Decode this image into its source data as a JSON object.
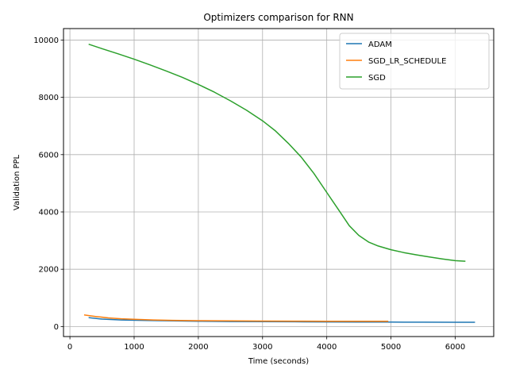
{
  "chart_data": {
    "type": "line",
    "title": "Optimizers comparison for RNN",
    "xlabel": "Time (seconds)",
    "ylabel": "Validation PPL",
    "xlim": [
      -100,
      6600
    ],
    "ylim": [
      -350,
      10400
    ],
    "xticks": [
      0,
      1000,
      2000,
      3000,
      4000,
      5000,
      6000
    ],
    "yticks": [
      0,
      2000,
      4000,
      6000,
      8000,
      10000
    ],
    "grid": true,
    "legend_position": "top-right",
    "series": [
      {
        "name": "ADAM",
        "color": "#1f77b4",
        "x": [
          300,
          500,
          800,
          1200,
          1600,
          2000,
          2500,
          3000,
          3500,
          4000,
          4500,
          5000,
          5500,
          6000,
          6300
        ],
        "y": [
          310,
          260,
          230,
          210,
          195,
          185,
          175,
          170,
          165,
          160,
          158,
          155,
          152,
          150,
          150
        ]
      },
      {
        "name": "SGD_LR_SCHEDULE",
        "color": "#ff7f0e",
        "x": [
          230,
          400,
          600,
          800,
          1000,
          1300,
          1600,
          2000,
          2500,
          3000,
          3500,
          4000,
          4500,
          4950
        ],
        "y": [
          400,
          350,
          300,
          270,
          250,
          230,
          215,
          205,
          195,
          190,
          188,
          186,
          185,
          185
        ]
      },
      {
        "name": "SGD",
        "color": "#2ca02c",
        "x": [
          300,
          500,
          750,
          1000,
          1250,
          1500,
          1750,
          2000,
          2250,
          2500,
          2750,
          3000,
          3200,
          3400,
          3600,
          3800,
          4000,
          4200,
          4350,
          4500,
          4650,
          4800,
          5000,
          5200,
          5400,
          5600,
          5800,
          6000,
          6150
        ],
        "y": [
          9850,
          9700,
          9520,
          9330,
          9130,
          8920,
          8700,
          8450,
          8180,
          7880,
          7550,
          7180,
          6830,
          6400,
          5920,
          5340,
          4680,
          4020,
          3520,
          3180,
          2950,
          2810,
          2680,
          2580,
          2500,
          2430,
          2360,
          2300,
          2280
        ]
      }
    ]
  }
}
